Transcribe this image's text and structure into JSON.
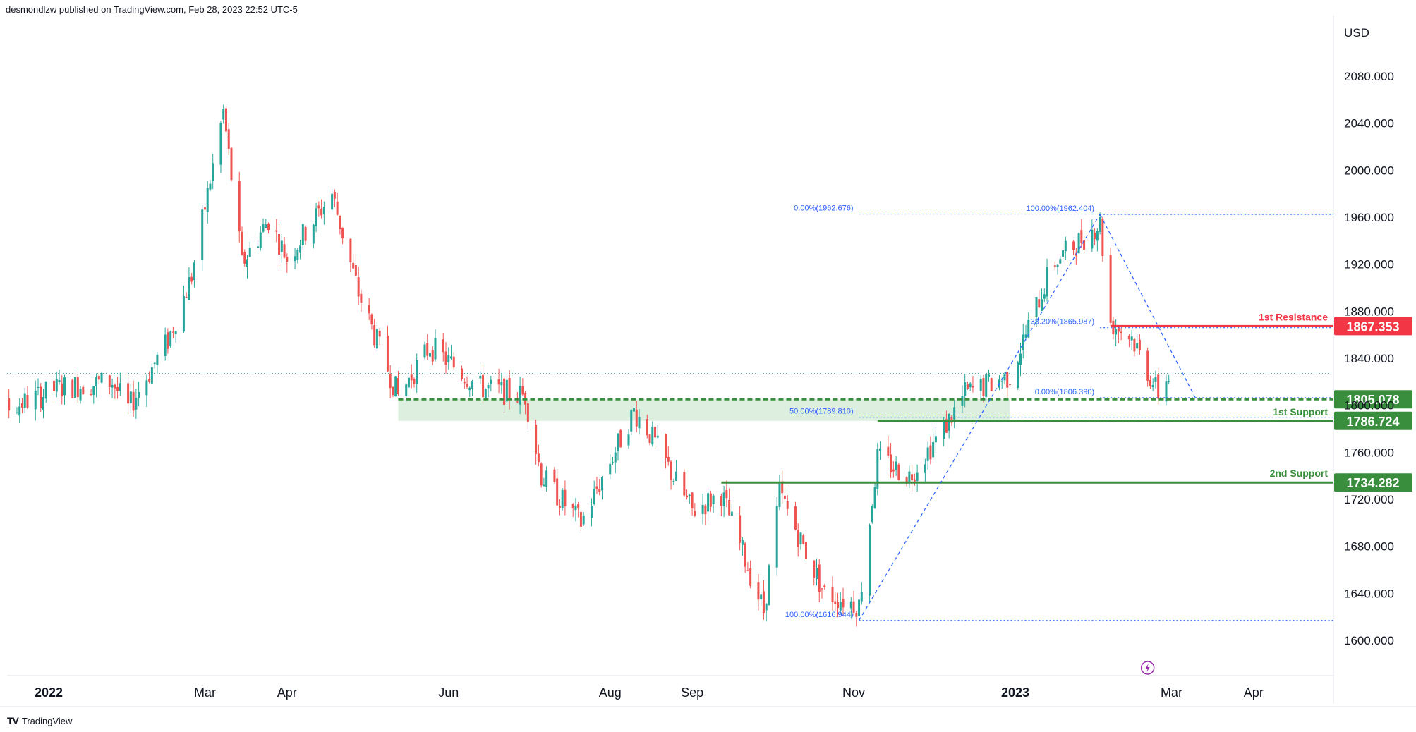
{
  "header": {
    "published": "desmondlzw published on TradingView.com, Feb 28, 2023 22:52 UTC-5"
  },
  "footer": {
    "brand": "TradingView",
    "logo_glyph": "TV"
  },
  "colors": {
    "up": "#26a69a",
    "down": "#ef5350",
    "resistance": "#f23645",
    "support": "#388e3c",
    "support_zone": "#d7ecd9",
    "fib": "#2962ff",
    "fib_text": "#2962ff",
    "current_price_line": "#26a69a"
  },
  "chart_data": {
    "type": "candlestick",
    "symbol_currency": "USD",
    "ylim": [
      1570,
      2100
    ],
    "y_ticks": [
      "2080.000",
      "2040.000",
      "2000.000",
      "1960.000",
      "1920.000",
      "1880.000",
      "1840.000",
      "1800.000",
      "1760.000",
      "1720.000",
      "1680.000",
      "1640.000",
      "1600.000"
    ],
    "x_ticks": [
      {
        "label": "2022",
        "date": "2022-01-01",
        "bold": true
      },
      {
        "label": "Mar",
        "date": "2022-03-01",
        "bold": false
      },
      {
        "label": "Apr",
        "date": "2022-04-01",
        "bold": false
      },
      {
        "label": "Jun",
        "date": "2022-06-01",
        "bold": false
      },
      {
        "label": "Aug",
        "date": "2022-08-01",
        "bold": false
      },
      {
        "label": "Sep",
        "date": "2022-09-01",
        "bold": false
      },
      {
        "label": "Nov",
        "date": "2022-11-01",
        "bold": false
      },
      {
        "label": "2023",
        "date": "2023-01-01",
        "bold": true
      },
      {
        "label": "Mar",
        "date": "2023-03-01",
        "bold": false
      },
      {
        "label": "Apr",
        "date": "2023-04-01",
        "bold": false
      }
    ],
    "price_path": [
      [
        "2021-12-01",
        1785
      ],
      [
        "2021-12-20",
        1800
      ],
      [
        "2022-01-05",
        1815
      ],
      [
        "2022-01-25",
        1820
      ],
      [
        "2022-01-31",
        1797
      ],
      [
        "2022-02-15",
        1855
      ],
      [
        "2022-02-24",
        1910
      ],
      [
        "2022-03-08",
        2050
      ],
      [
        "2022-03-15",
        1920
      ],
      [
        "2022-03-25",
        1958
      ],
      [
        "2022-04-01",
        1925
      ],
      [
        "2022-04-18",
        1980
      ],
      [
        "2022-04-28",
        1895
      ],
      [
        "2022-05-13",
        1808
      ],
      [
        "2022-05-25",
        1850
      ],
      [
        "2022-06-13",
        1815
      ],
      [
        "2022-06-30",
        1808
      ],
      [
        "2022-07-06",
        1740
      ],
      [
        "2022-07-21",
        1700
      ],
      [
        "2022-08-10",
        1795
      ],
      [
        "2022-08-15",
        1780
      ],
      [
        "2022-09-01",
        1710
      ],
      [
        "2022-09-12",
        1725
      ],
      [
        "2022-09-28",
        1625
      ],
      [
        "2022-10-04",
        1725
      ],
      [
        "2022-10-21",
        1640
      ],
      [
        "2022-11-03",
        1630
      ],
      [
        "2022-11-10",
        1755
      ],
      [
        "2022-11-22",
        1740
      ],
      [
        "2022-12-05",
        1780
      ],
      [
        "2022-12-13",
        1810
      ],
      [
        "2022-12-30",
        1825
      ],
      [
        "2023-01-15",
        1920
      ],
      [
        "2023-02-02",
        1955
      ],
      [
        "2023-02-06",
        1870
      ],
      [
        "2023-02-14",
        1858
      ],
      [
        "2023-02-24",
        1810
      ],
      [
        "2023-02-28",
        1826
      ]
    ],
    "current_price_level": 1827,
    "support_zone": {
      "from": "2022-05-13",
      "to": "2022-12-30",
      "low": 1786.724,
      "high": 1805.078
    },
    "levels": [
      {
        "label": "1st Resistance",
        "value": "1867.353",
        "price": 1867.353,
        "kind": "resistance",
        "from": "2023-02-06"
      },
      {
        "label": "",
        "value": "1805.078",
        "price": 1805.078,
        "kind": "support-dashed",
        "from": "2022-05-13"
      },
      {
        "label": "1st Support",
        "value": "1786.724",
        "price": 1786.724,
        "kind": "support",
        "from": "2022-11-10"
      },
      {
        "label": "2nd Support",
        "value": "1734.282",
        "price": 1734.282,
        "kind": "support",
        "from": "2022-09-12"
      }
    ],
    "fib_rising": {
      "start": [
        "2022-11-03",
        1616.944
      ],
      "end": [
        "2023-02-02",
        1962.676
      ],
      "labels": [
        {
          "text": "0.00%(1962.676)",
          "price": 1962.676,
          "from": "2022-11-03"
        },
        {
          "text": "50.00%(1789.810)",
          "price": 1789.81,
          "from": "2022-11-03"
        },
        {
          "text": "100.00%(1616.944)",
          "price": 1616.944,
          "from": "2022-11-03"
        }
      ]
    },
    "fib_falling": {
      "start": [
        "2023-02-02",
        1962.404
      ],
      "end": [
        "2023-03-10",
        1806.39
      ],
      "labels": [
        {
          "text": "100.00%(1962.404)",
          "price": 1962.404,
          "from": "2023-02-02"
        },
        {
          "text": "38.20%(1865.987)",
          "price": 1865.987,
          "from": "2023-02-02"
        },
        {
          "text": "0.00%(1806.390)",
          "price": 1806.39,
          "from": "2023-02-02"
        }
      ]
    },
    "axis_icon": "lightning-icon"
  }
}
